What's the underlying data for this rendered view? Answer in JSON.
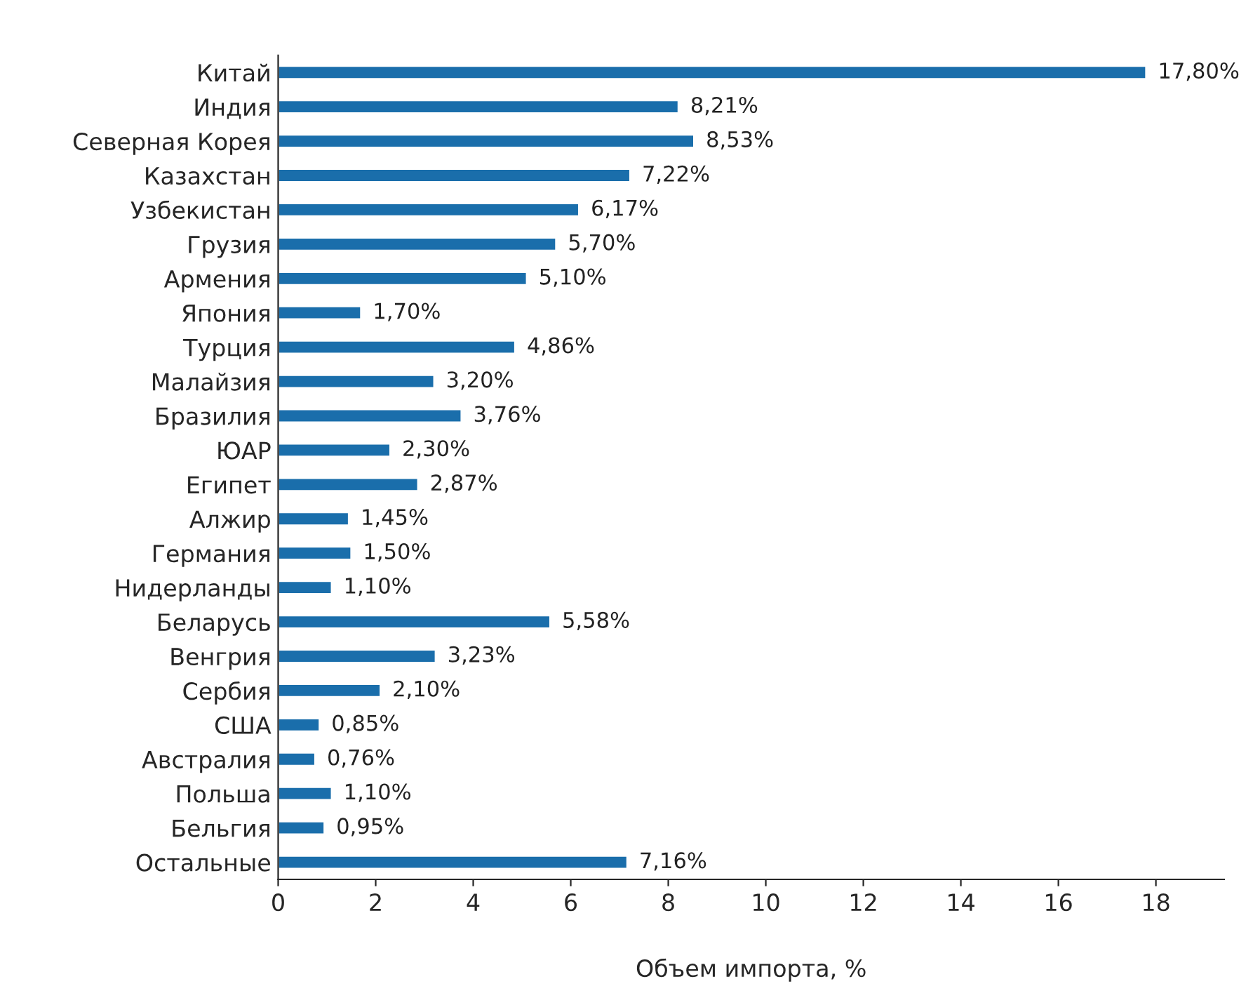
{
  "chart_data": {
    "type": "bar",
    "orientation": "horizontal",
    "xlabel": "Объем импорта, %",
    "categories": [
      "Китай",
      "Индия",
      "Северная Корея",
      "Казахстан",
      "Узбекистан",
      "Грузия",
      "Армения",
      "Япония",
      "Турция",
      "Малайзия",
      "Бразилия",
      "ЮАР",
      "Египет",
      "Алжир",
      "Германия",
      "Нидерланды",
      "Беларусь",
      "Венгрия",
      "Сербия",
      "США",
      "Австралия",
      "Польша",
      "Бельгия",
      "Остальные"
    ],
    "values": [
      17.8,
      8.21,
      8.53,
      7.22,
      6.17,
      5.7,
      5.1,
      1.7,
      4.86,
      3.2,
      3.76,
      2.3,
      2.87,
      1.45,
      1.5,
      1.1,
      5.58,
      3.23,
      2.1,
      0.85,
      0.76,
      1.1,
      0.95,
      7.16
    ],
    "value_labels": [
      "17,80%",
      "8,21%",
      "8,53%",
      "7,22%",
      "6,17%",
      "5,70%",
      "5,10%",
      "1,70%",
      "4,86%",
      "3,20%",
      "3,76%",
      "2,30%",
      "2,87%",
      "1,45%",
      "1,50%",
      "1,10%",
      "5,58%",
      "3,23%",
      "2,10%",
      "0,85%",
      "0,76%",
      "1,10%",
      "0,95%",
      "7,16%"
    ],
    "color": "#1a6eab",
    "xlim": [
      0,
      19.4
    ],
    "xticks": [
      0,
      2,
      4,
      6,
      8,
      10,
      12,
      14,
      16,
      18
    ],
    "grid": false
  }
}
